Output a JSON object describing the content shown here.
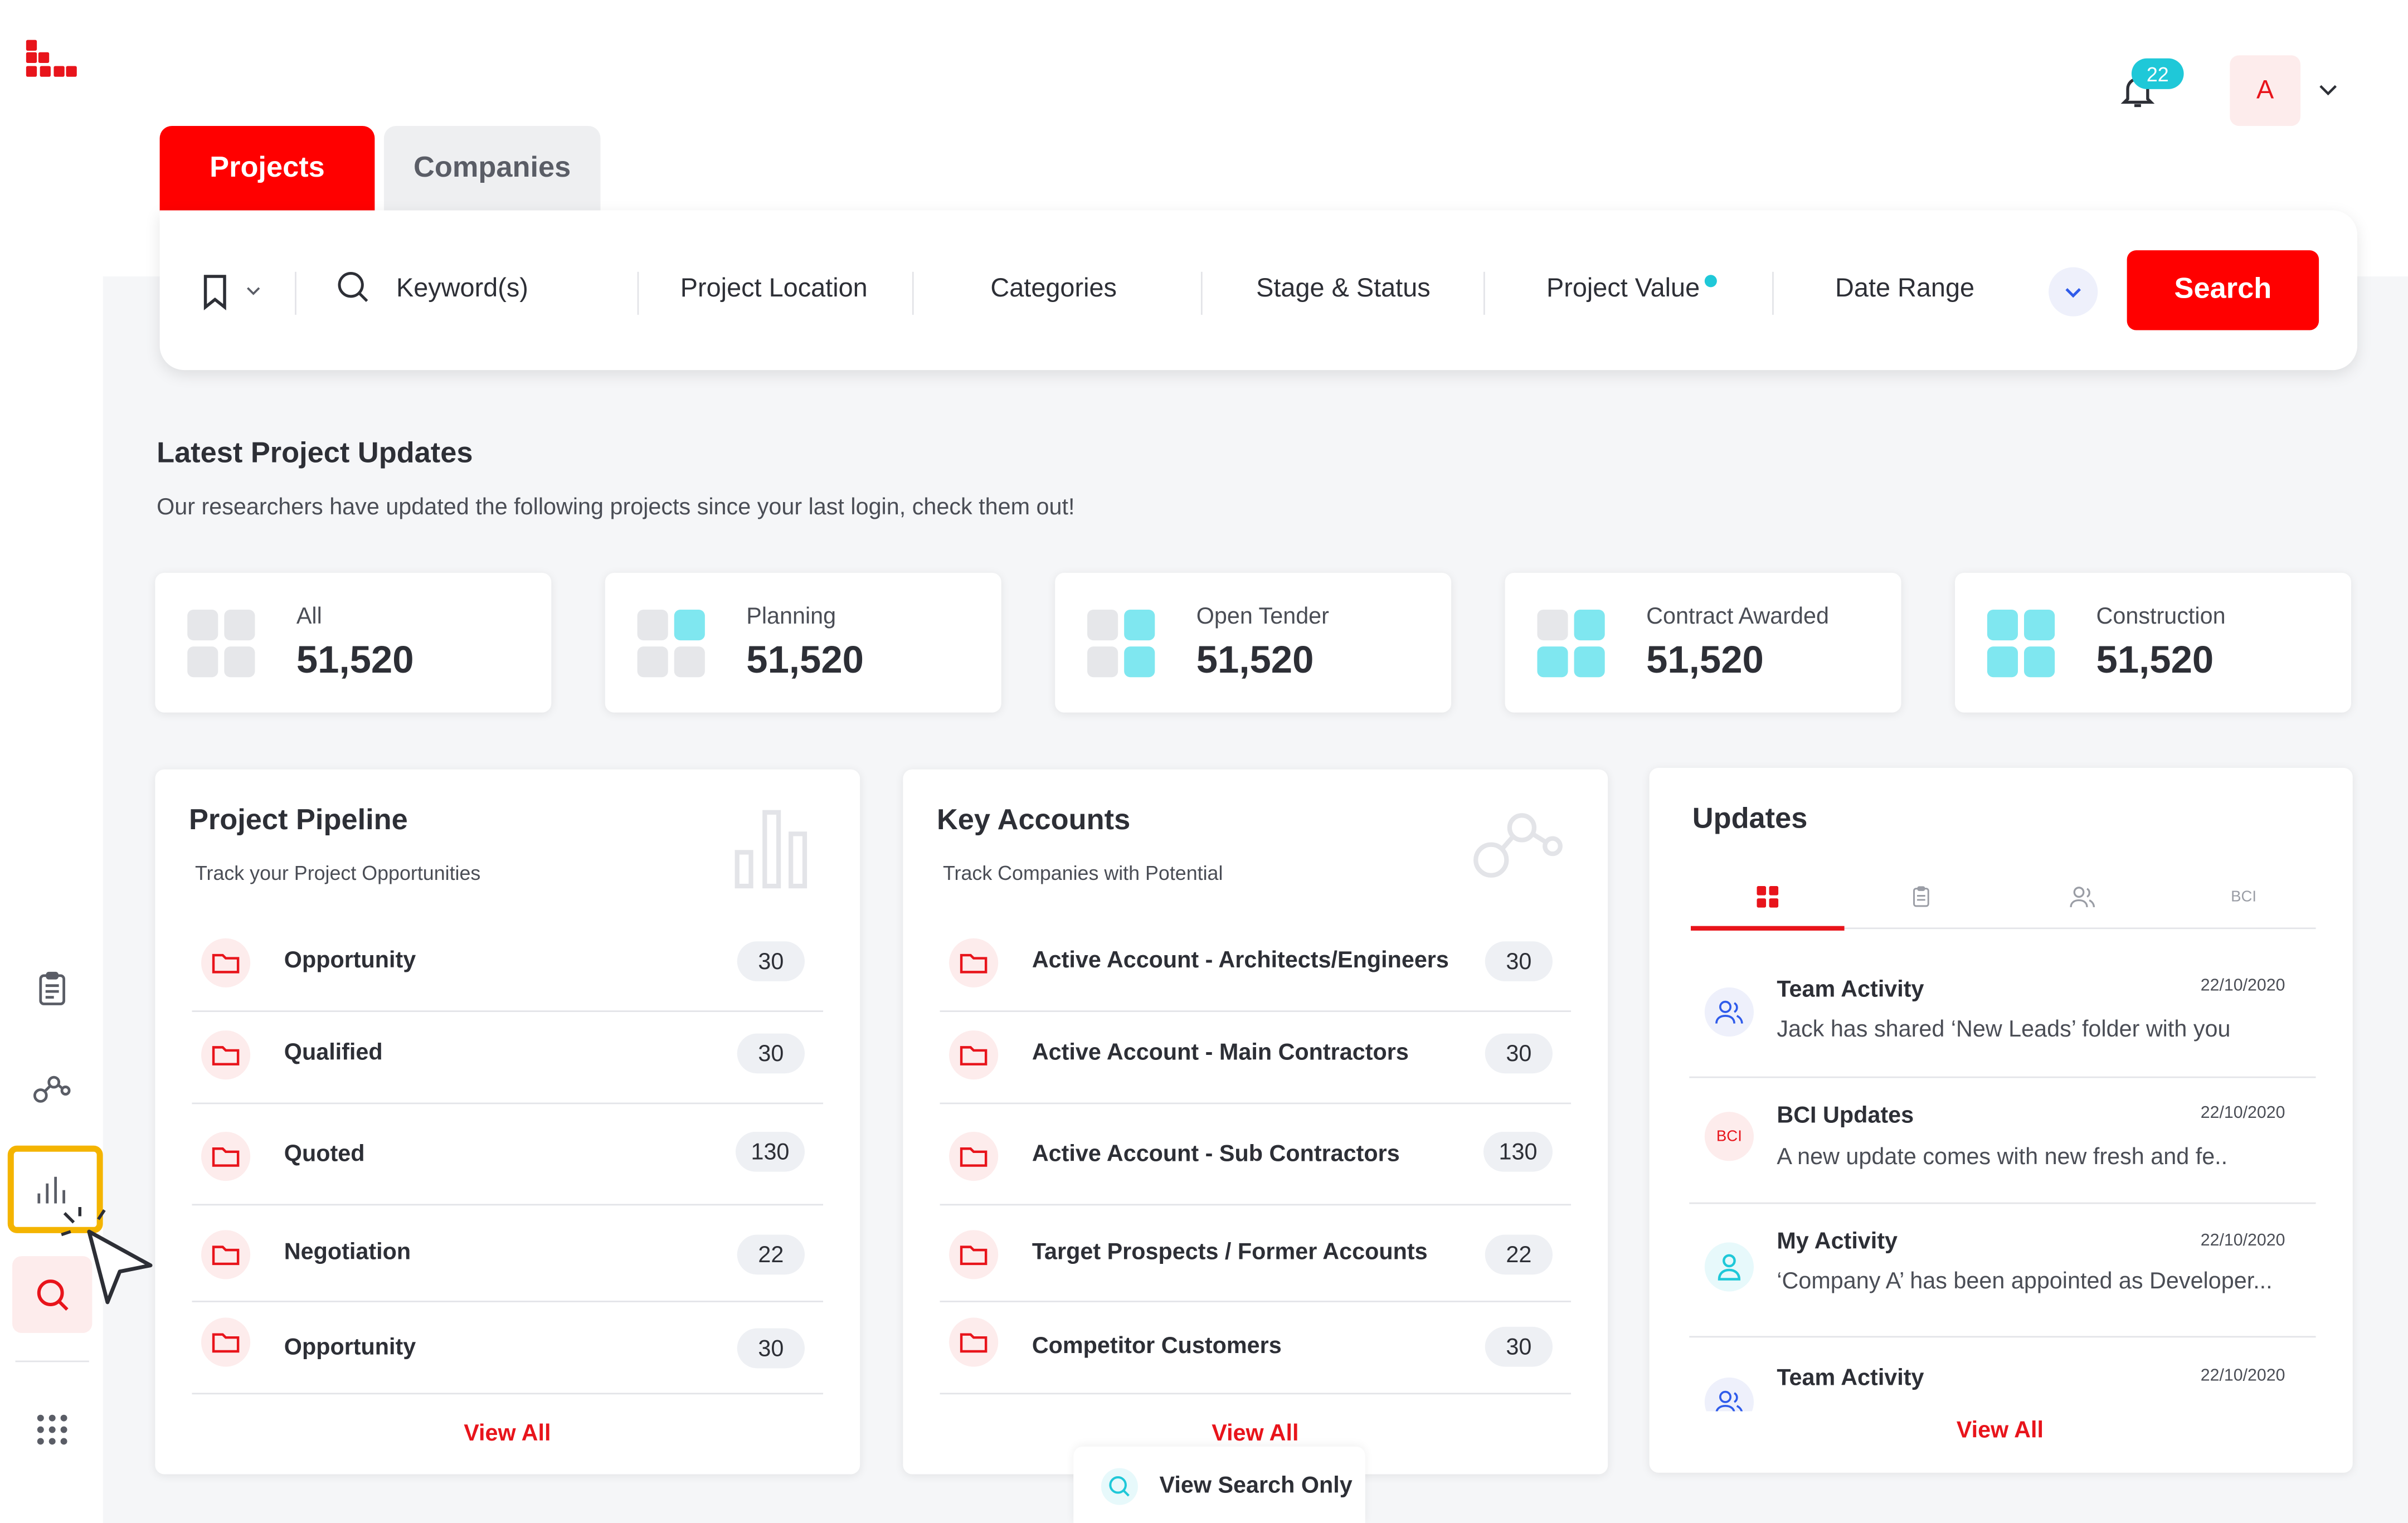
{
  "header": {
    "notification_count": "22",
    "avatar_initial": "A"
  },
  "tabs": [
    {
      "label": "Projects",
      "active": true
    },
    {
      "label": "Companies",
      "active": false
    }
  ],
  "search": {
    "keyword_placeholder": "Keyword(s)",
    "filters": [
      "Project Location",
      "Categories",
      "Stage & Status",
      "Project Value",
      "Date Range"
    ],
    "button_label": "Search"
  },
  "updates_section": {
    "title": "Latest Project Updates",
    "subtitle": "Our researchers have updated the following projects since your last login, check them out!"
  },
  "stats": [
    {
      "label": "All",
      "value": "51,520"
    },
    {
      "label": "Planning",
      "value": "51,520"
    },
    {
      "label": "Open Tender",
      "value": "51,520"
    },
    {
      "label": "Contract Awarded",
      "value": "51,520"
    },
    {
      "label": "Construction",
      "value": "51,520"
    }
  ],
  "pipeline": {
    "title": "Project Pipeline",
    "subtitle": "Track your Project Opportunities",
    "rows": [
      {
        "label": "Opportunity",
        "count": "30"
      },
      {
        "label": "Qualified",
        "count": "30"
      },
      {
        "label": "Quoted",
        "count": "130"
      },
      {
        "label": "Negotiation",
        "count": "22"
      },
      {
        "label": "Opportunity",
        "count": "30"
      }
    ],
    "view_all": "View All"
  },
  "key_accounts": {
    "title": "Key Accounts",
    "subtitle": "Track Companies with Potential",
    "rows": [
      {
        "label": "Active Account - Architects/Engineers",
        "count": "30"
      },
      {
        "label": "Active Account - Main Contractors",
        "count": "30"
      },
      {
        "label": "Active Account - Sub Contractors",
        "count": "130"
      },
      {
        "label": "Target Prospects / Former Accounts",
        "count": "22"
      },
      {
        "label": "Competitor Customers",
        "count": "30"
      }
    ],
    "view_all": "View All"
  },
  "updates": {
    "title": "Updates",
    "tab_bci": "BCI",
    "items": [
      {
        "title": "Team Activity",
        "date": "22/10/2020",
        "text": "Jack has shared ‘New Leads’ folder with you",
        "icon": "team-icon"
      },
      {
        "title": "BCI Updates",
        "date": "22/10/2020",
        "text": "A new update comes with new fresh and  fe..",
        "icon": "BCI"
      },
      {
        "title": "My Activity",
        "date": "22/10/2020",
        "text": "‘Company A’ has been appointed as Developer...",
        "icon": "user-icon"
      },
      {
        "title": "Team Activity",
        "date": "22/10/2020",
        "text": "",
        "icon": "team-icon"
      }
    ],
    "view_all": "View All"
  },
  "footer": {
    "view_search_only": "View Search Only"
  },
  "colors": {
    "brand_red": "#ff0000",
    "accent_cyan": "#1fc8d8",
    "highlight_yellow": "#f4b400"
  }
}
